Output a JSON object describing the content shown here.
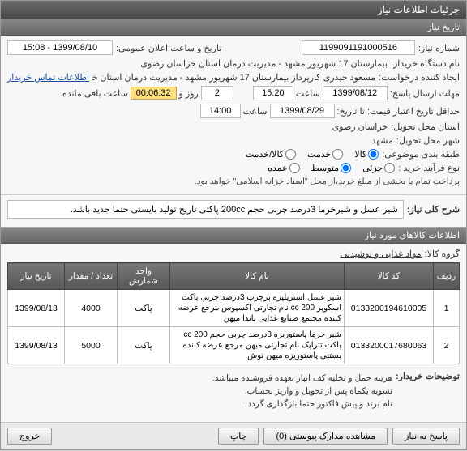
{
  "window": {
    "title": "جزئیات اطلاعات نیاز"
  },
  "sections": {
    "history": "تاریخ نیاز",
    "general_desc": "شرح کلی نیاز:",
    "items_info": "اطلاعات کالاهای مورد نیاز",
    "buyer_notes": "توضیحات خریدار:"
  },
  "labels": {
    "need_no": "شماره نیاز:",
    "announce_dt": "تاریخ و ساعت اعلان عمومی:",
    "buyer_org": "نام دستگاه خریدار:",
    "creator": "ایجاد کننده درخواست:",
    "contact": "اطلاعات تماس خریدار",
    "deadline": "مهلت ارسال پاسخ:",
    "at": "ساعت",
    "days": "روز و",
    "remain": "ساعت باقی مانده",
    "valid_until": "حداقل تاریخ اعتبار قیمت: تا تاریخ:",
    "deliver_prov": "استان محل تحویل:",
    "deliver_city": "شهر محل تحویل:",
    "subject_cat": "طبقه بندی موضوعی:",
    "buy_type": "نوع فرآیند خرید :",
    "goods": "کالا",
    "service": "خدمت",
    "goods_service": "کالا/خدمت",
    "small": "جزئی",
    "medium": "متوسط",
    "large": "عمده",
    "group": "گروه کالا:"
  },
  "values": {
    "need_no": "1199091191000516",
    "announce_dt": "1399/08/10 - 15:08",
    "buyer_org": "بیمارستان 17 شهریور مشهد - مدیریت درمان استان خراسان رضوی",
    "creator": "مسعود حیدری کارپرداز بیمارستان 17 شهریور مشهد - مدیریت درمان استان خرا",
    "deadline_date": "1399/08/12",
    "deadline_time": "15:20",
    "days_left": "2",
    "timer": "00:06:32",
    "valid_date": "1399/08/29",
    "valid_time": "14:00",
    "province": "خراسان رضوی",
    "city": "مشهد",
    "buy_note": "پرداخت تمام یا بخشی از مبلغ خرید،از محل \"اسناد خزانه اسلامی\" خواهد بود.",
    "general_desc": "شیر عسل و شیرخرما 3درصد چربی حجم 200cc پاکتی تاریخ تولید بایستی حتما جدید باشد.",
    "group": "مواد غذایی و نوشیدنی",
    "buyer_notes_1": "هزینه حمل و تخلیه کف انبار بعهده فروشنده میباشد.",
    "buyer_notes_2": "تسویه یکماه پس از تحویل و واریز بحساب.",
    "buyer_notes_3": "نام برند و پیش فاکتور حتما بارگذاری گردد."
  },
  "radios": {
    "subject": "goods",
    "buy_type": "medium"
  },
  "table": {
    "headers": {
      "row": "ردیف",
      "code": "کد کالا",
      "name": "نام کالا",
      "unit": "واحد شمارش",
      "qty": "تعداد / مقدار",
      "date": "تاریخ نیاز"
    },
    "rows": [
      {
        "idx": "1",
        "code": "0133200194610005",
        "name": "شیر عسل استریلیزه پرچرب 3درصد چربی پاکت اسکوپر 200 cc نام تجارتی اکسپوس مرجع عرضه کننده مجتمع صنایع غذایی پاندا میهن",
        "unit": "پاکت",
        "qty": "4000",
        "date": "1399/08/13"
      },
      {
        "idx": "2",
        "code": "0133200017680063",
        "name": "شیر خرما پاستوریزه 3درصد چربی حجم 200 cc پاکت تتراپک نام تجارتی میهن مرجع عرضه کننده بستنی پاستوریزه میهن نوش",
        "unit": "پاکت",
        "qty": "5000",
        "date": "1399/08/13"
      }
    ]
  },
  "footer": {
    "reply": "پاسخ به نیاز",
    "attachments": "مشاهده مدارک پیوستی  (0)",
    "print": "چاپ",
    "exit": "خروج"
  }
}
